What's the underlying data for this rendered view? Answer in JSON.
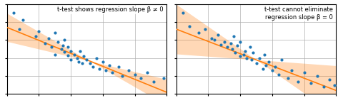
{
  "chart_data": [
    {
      "type": "scatter",
      "title": "t-test shows regression slope β ≠ 0",
      "xlim": [
        0,
        1
      ],
      "ylim": [
        0,
        1
      ],
      "xticks": [
        0,
        0.2,
        0.4,
        0.6,
        0.8,
        1.0
      ],
      "yticks": [
        0,
        0.2,
        0.4,
        0.6,
        0.8,
        1.0
      ],
      "grid": true,
      "tick_labels": false,
      "series": [
        {
          "type": "scatter",
          "x": [
            0.04,
            0.08,
            0.1,
            0.18,
            0.2,
            0.24,
            0.26,
            0.28,
            0.3,
            0.3,
            0.32,
            0.34,
            0.35,
            0.36,
            0.36,
            0.38,
            0.38,
            0.4,
            0.4,
            0.42,
            0.44,
            0.45,
            0.46,
            0.47,
            0.48,
            0.5,
            0.52,
            0.54,
            0.56,
            0.58,
            0.6,
            0.62,
            0.64,
            0.66,
            0.7,
            0.72,
            0.76,
            0.8,
            0.84,
            0.88,
            0.92,
            0.98
          ],
          "values": [
            0.9,
            0.72,
            0.82,
            0.64,
            0.7,
            0.56,
            0.62,
            0.52,
            0.68,
            0.44,
            0.58,
            0.5,
            0.54,
            0.47,
            0.6,
            0.43,
            0.52,
            0.48,
            0.38,
            0.44,
            0.4,
            0.36,
            0.48,
            0.34,
            0.42,
            0.38,
            0.34,
            0.3,
            0.4,
            0.28,
            0.36,
            0.26,
            0.32,
            0.24,
            0.3,
            0.2,
            0.26,
            0.22,
            0.18,
            0.24,
            0.14,
            0.18
          ]
        },
        {
          "type": "band",
          "x": [
            0,
            0.52,
            0.878431,
            1
          ],
          "upper": [
            0.896,
            0.3656,
            0.215059,
            0.164
          ],
          "lower": [
            0.584,
            0.3656,
            0,
            0
          ]
        },
        {
          "type": "line",
          "x": [
            0,
            1
          ],
          "values": [
            0.74,
            0.02
          ]
        }
      ]
    },
    {
      "type": "scatter",
      "title": "t-test cannot eliminate\nregression slope β = 0",
      "xlim": [
        0,
        1
      ],
      "ylim": [
        0,
        1
      ],
      "xticks": [
        0,
        0.2,
        0.4,
        0.6,
        0.8,
        1.0
      ],
      "yticks": [
        0,
        0.2,
        0.4,
        0.6,
        0.8,
        1.0
      ],
      "grid": true,
      "tick_labels": false,
      "series": [
        {
          "type": "scatter",
          "x": [
            0.04,
            0.08,
            0.14,
            0.18,
            0.22,
            0.24,
            0.26,
            0.28,
            0.3,
            0.32,
            0.34,
            0.35,
            0.36,
            0.37,
            0.38,
            0.4,
            0.4,
            0.42,
            0.43,
            0.44,
            0.46,
            0.47,
            0.48,
            0.5,
            0.52,
            0.54,
            0.55,
            0.56,
            0.58,
            0.6,
            0.62,
            0.64,
            0.66,
            0.7,
            0.72,
            0.76,
            0.8,
            0.84,
            0.88,
            0.92,
            0.96,
            0.99
          ],
          "values": [
            0.9,
            0.75,
            0.68,
            0.72,
            0.62,
            0.6,
            0.66,
            0.55,
            0.58,
            0.52,
            0.56,
            0.5,
            0.64,
            0.46,
            0.54,
            0.42,
            0.58,
            0.44,
            0.48,
            0.4,
            0.52,
            0.38,
            0.46,
            0.34,
            0.4,
            0.28,
            0.44,
            0.32,
            0.36,
            0.26,
            0.3,
            0.22,
            0.38,
            0.18,
            0.26,
            0.14,
            0.24,
            0.12,
            0.2,
            0.08,
            0.16,
            0.1
          ]
        },
        {
          "type": "band",
          "x": [
            0,
            0.5,
            0.808943,
            1
          ],
          "upper": [
            0.995,
            0.38,
            0.339837,
            0.315
          ],
          "lower": [
            0.445,
            0.38,
            0,
            0
          ]
        },
        {
          "type": "line",
          "x": [
            0,
            1
          ],
          "values": [
            0.72,
            0.04
          ]
        }
      ]
    }
  ]
}
